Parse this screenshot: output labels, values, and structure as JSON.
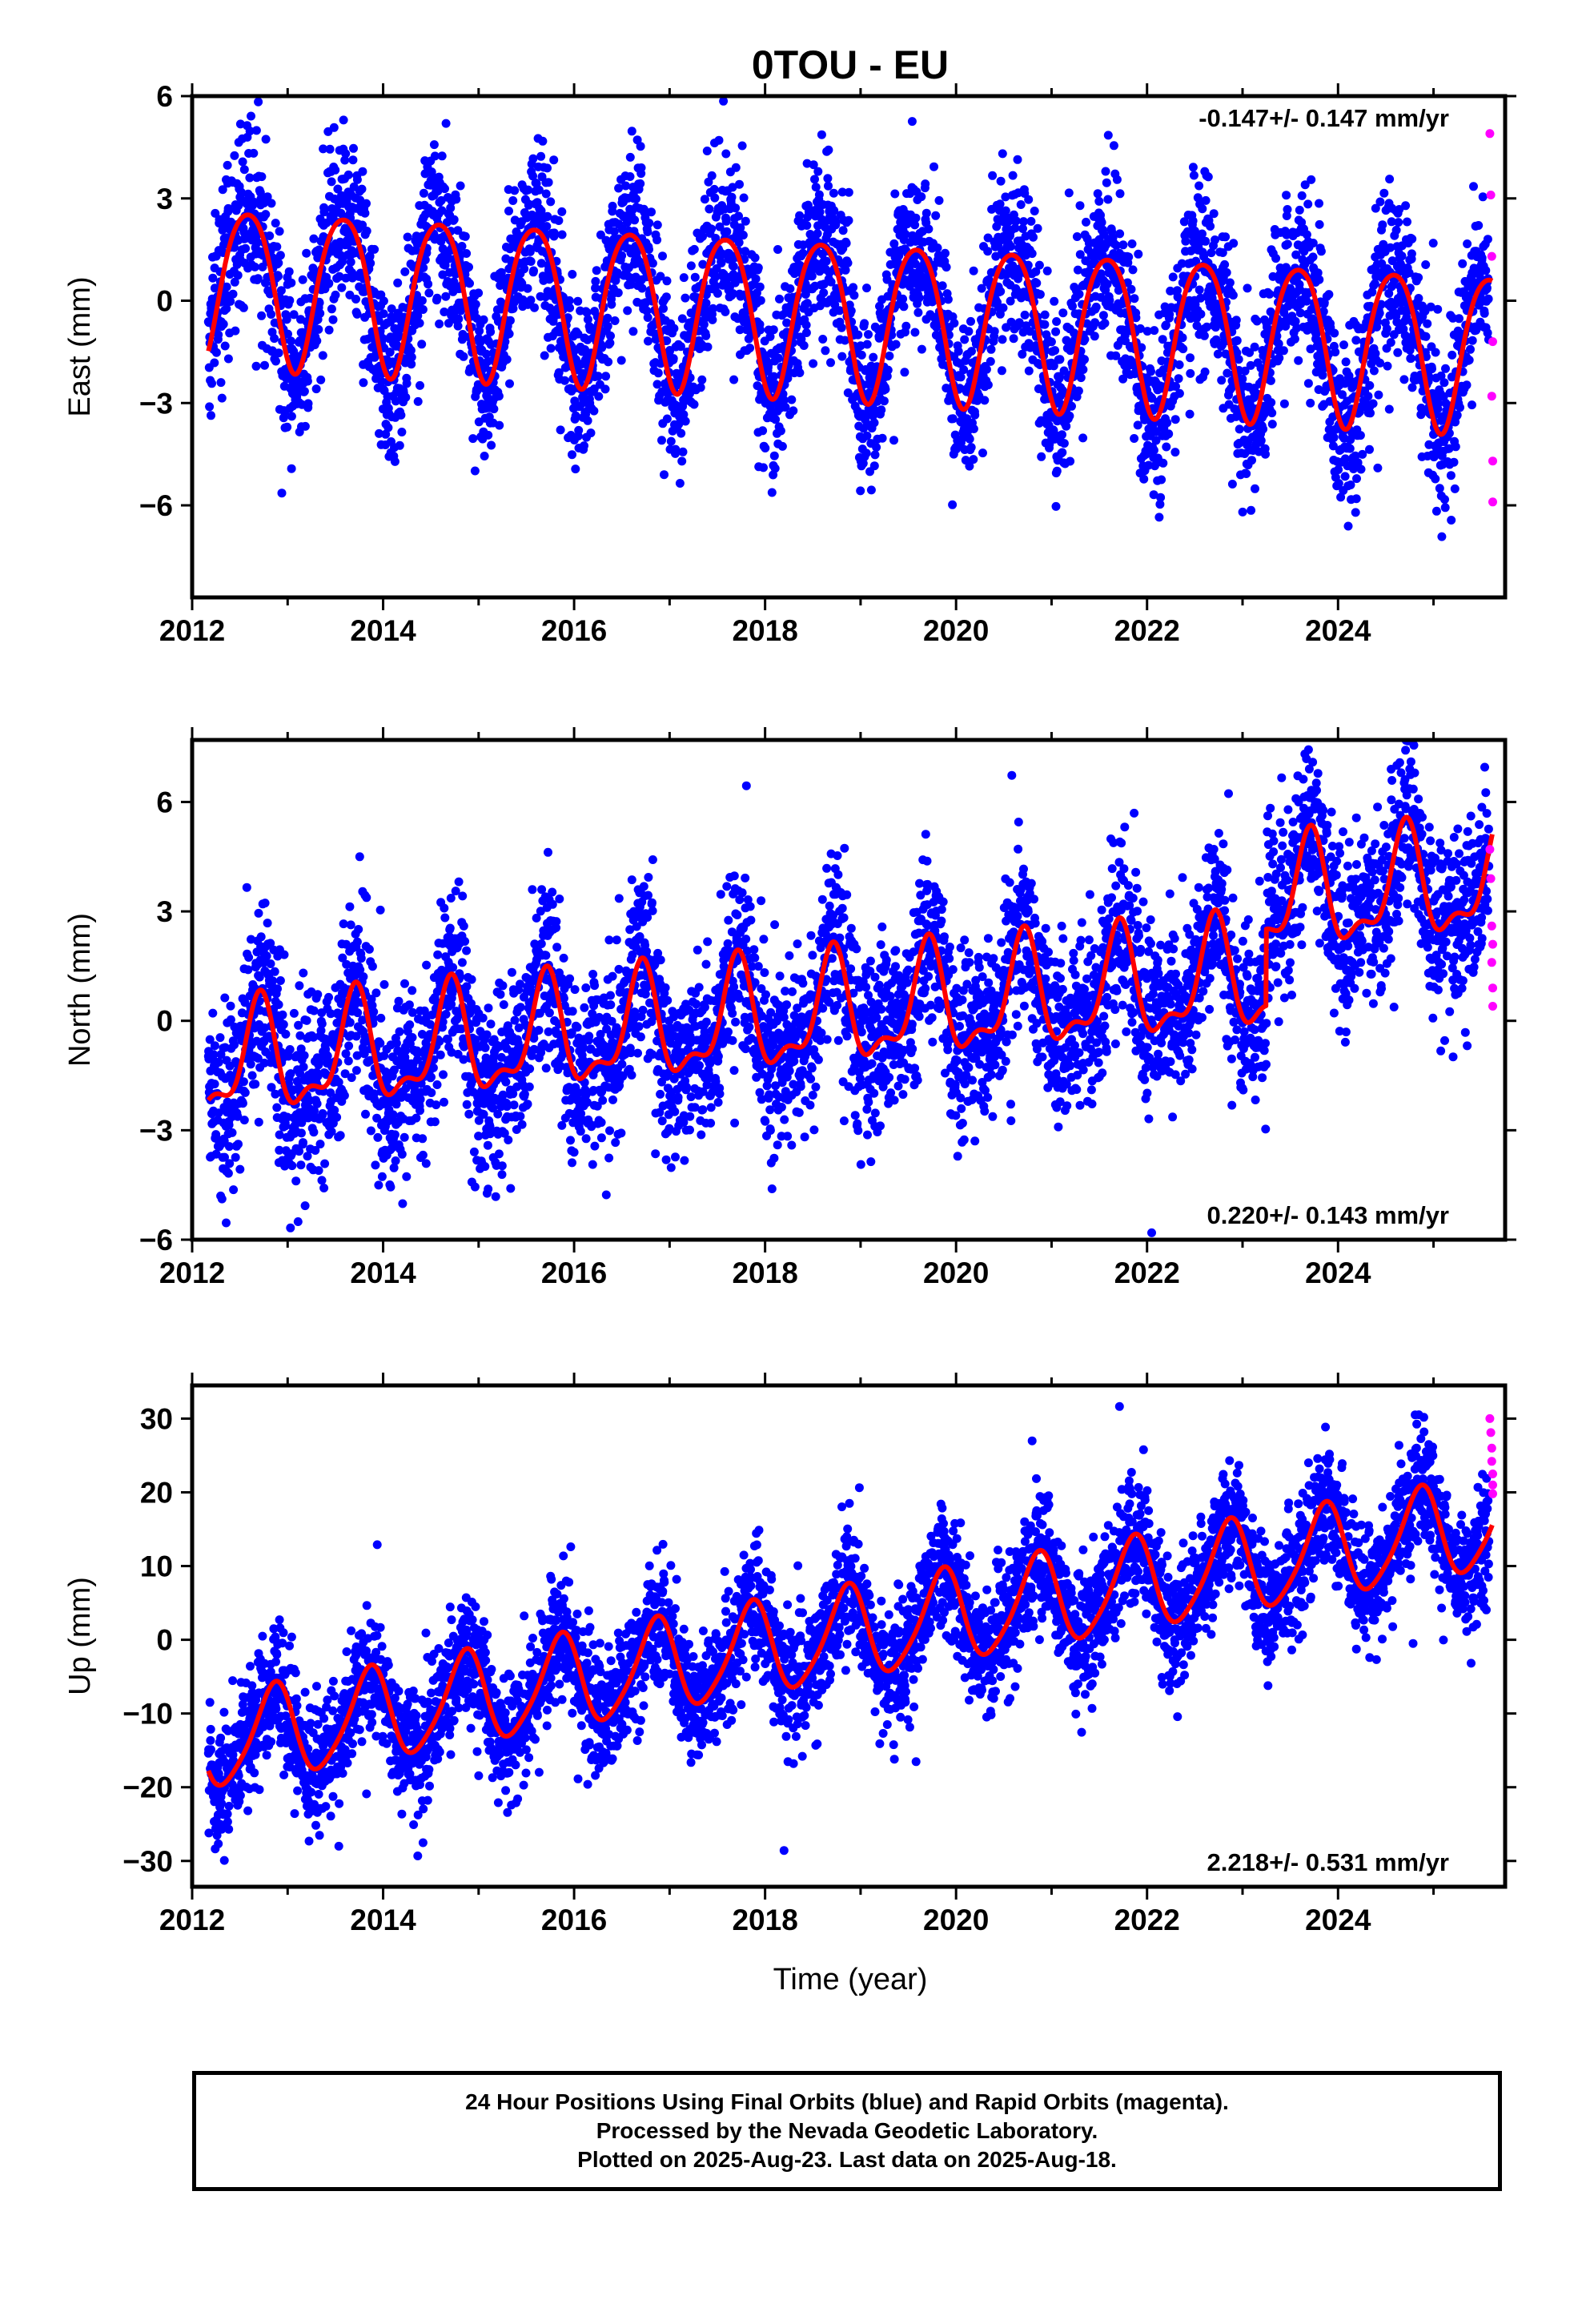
{
  "title": "0TOU - EU",
  "xlabel": "Time (year)",
  "colors": {
    "final": "#0000ff",
    "rapid": "#ff00ff",
    "model": "#ff0000"
  },
  "caption": [
    "24 Hour Positions Using Final Orbits (blue) and Rapid Orbits (magenta).",
    "Processed by the Nevada Geodetic Laboratory.",
    "Plotted on 2025-Aug-23. Last data on 2025-Aug-18."
  ],
  "chart_data": [
    {
      "type": "scatter",
      "component": "east",
      "ylabel": "East (mm)",
      "rate_label": "-0.147+/- 0.147 mm/yr",
      "xlim": [
        2012.0,
        2025.75
      ],
      "ylim": [
        -8.7,
        6.0
      ],
      "xticks": [
        2012,
        2014,
        2016,
        2018,
        2020,
        2022,
        2024
      ],
      "yticks": [
        -6,
        -3,
        0,
        3,
        6
      ],
      "model": {
        "start": 2012.17,
        "end": 2025.62,
        "trend": -0.147,
        "offset_2012": 0.6,
        "amp1": 2.3,
        "phase1": 0.33,
        "amp2": 0.3,
        "phase2": 0.2
      },
      "scatter_sigma": 1.25,
      "series": [
        {
          "name": "Final Orbits",
          "color": "#0000ff",
          "x_range": [
            2012.17,
            2025.58
          ]
        },
        {
          "name": "Rapid Orbits",
          "color": "#ff00ff",
          "x": [
            2025.59,
            2025.6,
            2025.61,
            2025.61,
            2025.62,
            2025.62,
            2025.62
          ],
          "y": [
            4.9,
            3.1,
            1.3,
            -2.8,
            -4.7,
            -5.9,
            -1.2
          ]
        }
      ]
    },
    {
      "type": "scatter",
      "component": "north",
      "ylabel": "North (mm)",
      "rate_label": "0.220+/- 0.143 mm/yr",
      "xlim": [
        2012.0,
        2025.75
      ],
      "ylim": [
        -6.0,
        7.7
      ],
      "xticks": [
        2012,
        2014,
        2016,
        2018,
        2020,
        2022,
        2024
      ],
      "yticks": [
        -6,
        -3,
        0,
        3,
        6
      ],
      "model": {
        "start": 2012.17,
        "end": 2025.62,
        "trend": 0.22,
        "offset_2012": -1.3,
        "amp1": 1.4,
        "phase1": 0.45,
        "amp2": 0.6,
        "phase2": 0.1,
        "steps": [
          {
            "at": 2023.25,
            "size": 2.1
          }
        ]
      },
      "scatter_sigma": 1.2,
      "series": [
        {
          "name": "Final Orbits",
          "color": "#0000ff",
          "x_range": [
            2012.17,
            2025.58
          ]
        },
        {
          "name": "Rapid Orbits",
          "color": "#ff00ff",
          "x": [
            2025.59,
            2025.6,
            2025.61,
            2025.61,
            2025.62,
            2025.62,
            2025.62
          ],
          "y": [
            4.7,
            3.9,
            2.6,
            1.6,
            0.9,
            0.4,
            2.1
          ]
        }
      ]
    },
    {
      "type": "scatter",
      "component": "up",
      "ylabel": "Up (mm)",
      "rate_label": "2.218+/- 0.531 mm/yr",
      "xlim": [
        2012.0,
        2025.75
      ],
      "ylim": [
        -33.5,
        34.5
      ],
      "xticks": [
        2012,
        2014,
        2016,
        2018,
        2020,
        2022,
        2024
      ],
      "yticks": [
        -30,
        -20,
        -10,
        0,
        10,
        20,
        30
      ],
      "model": {
        "start": 2012.17,
        "end": 2025.62,
        "trend": 2.218,
        "offset_2012": -14.5,
        "amp1": 6.2,
        "phase1": 0.6,
        "amp2": 1.0,
        "phase2": 0.3
      },
      "scatter_sigma": 4.2,
      "series": [
        {
          "name": "Final Orbits",
          "color": "#0000ff",
          "x_range": [
            2012.17,
            2025.58
          ]
        },
        {
          "name": "Rapid Orbits",
          "color": "#ff00ff",
          "x": [
            2025.59,
            2025.6,
            2025.61,
            2025.61,
            2025.62,
            2025.62,
            2025.62
          ],
          "y": [
            30.0,
            28.1,
            26.0,
            24.2,
            22.5,
            21.0,
            19.8
          ]
        }
      ]
    }
  ]
}
